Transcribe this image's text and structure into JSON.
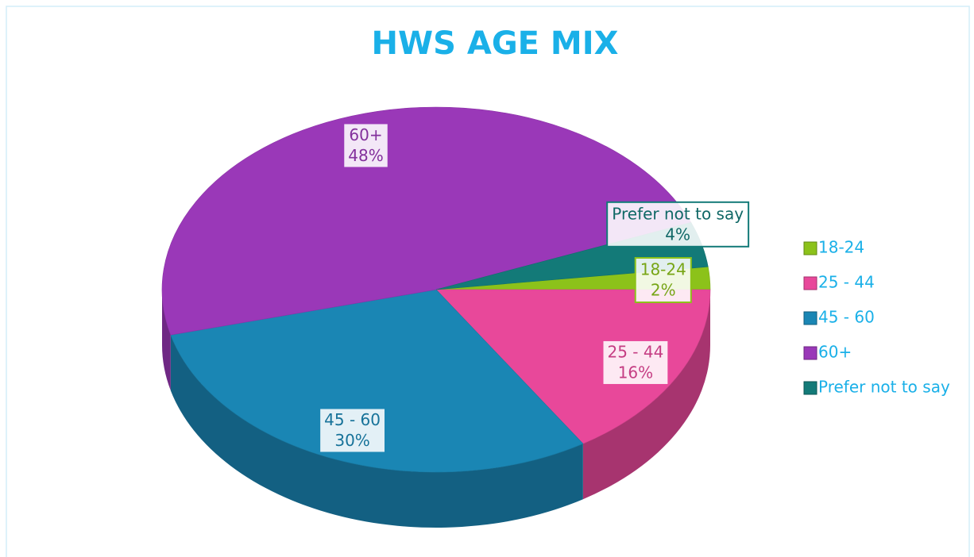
{
  "chart_data": {
    "type": "pie",
    "title": "HWS AGE MIX",
    "categories": [
      "18-24",
      "25 - 44",
      "45 - 60",
      "60+",
      "Prefer not to say"
    ],
    "values": [
      2,
      16,
      30,
      48,
      4
    ],
    "value_labels": [
      "2%",
      "16%",
      "30%",
      "48%",
      "4%"
    ],
    "colors": [
      "#8cc21a",
      "#e8489a",
      "#1a86b4",
      "#9a38b8",
      "#137a78"
    ],
    "legend": "right"
  }
}
